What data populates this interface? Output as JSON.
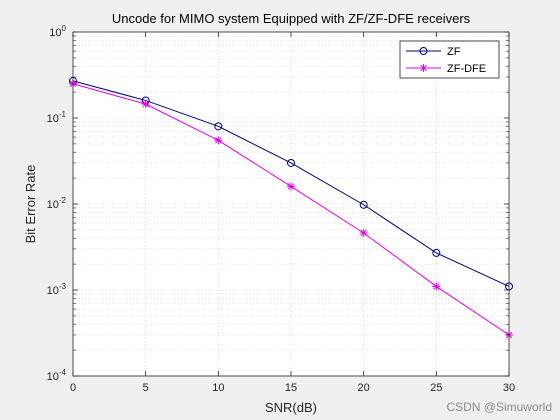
{
  "chart_data": {
    "type": "line",
    "title": "Uncode for MIMO system Equipped with ZF/ZF-DFE receivers",
    "xlabel": "SNR(dB)",
    "ylabel": "Bit Error Rate",
    "xlim": [
      0,
      30
    ],
    "ylim": [
      0.0001,
      1
    ],
    "yscale": "log",
    "grid": true,
    "minor_grid": true,
    "legend_position": "top-right",
    "x": [
      0,
      5,
      10,
      15,
      20,
      25,
      30
    ],
    "x_ticks": [
      "0",
      "5",
      "10",
      "15",
      "20",
      "25",
      "30"
    ],
    "y_ticks": [
      {
        "value": 1,
        "base": "10",
        "exp": "0"
      },
      {
        "value": 0.1,
        "base": "10",
        "exp": "-1"
      },
      {
        "value": 0.01,
        "base": "10",
        "exp": "-2"
      },
      {
        "value": 0.001,
        "base": "10",
        "exp": "-3"
      },
      {
        "value": 0.0001,
        "base": "10",
        "exp": "-4"
      }
    ],
    "series": [
      {
        "name": "ZF",
        "color": "#00007f",
        "marker": "circle",
        "values": [
          0.27,
          0.16,
          0.08,
          0.03,
          0.0098,
          0.0027,
          0.0011
        ]
      },
      {
        "name": "ZF-DFE",
        "color": "#e600e6",
        "marker": "star",
        "values": [
          0.25,
          0.145,
          0.055,
          0.016,
          0.0046,
          0.0011,
          0.0003
        ]
      }
    ]
  },
  "watermark": "CSDN @Simuworld"
}
